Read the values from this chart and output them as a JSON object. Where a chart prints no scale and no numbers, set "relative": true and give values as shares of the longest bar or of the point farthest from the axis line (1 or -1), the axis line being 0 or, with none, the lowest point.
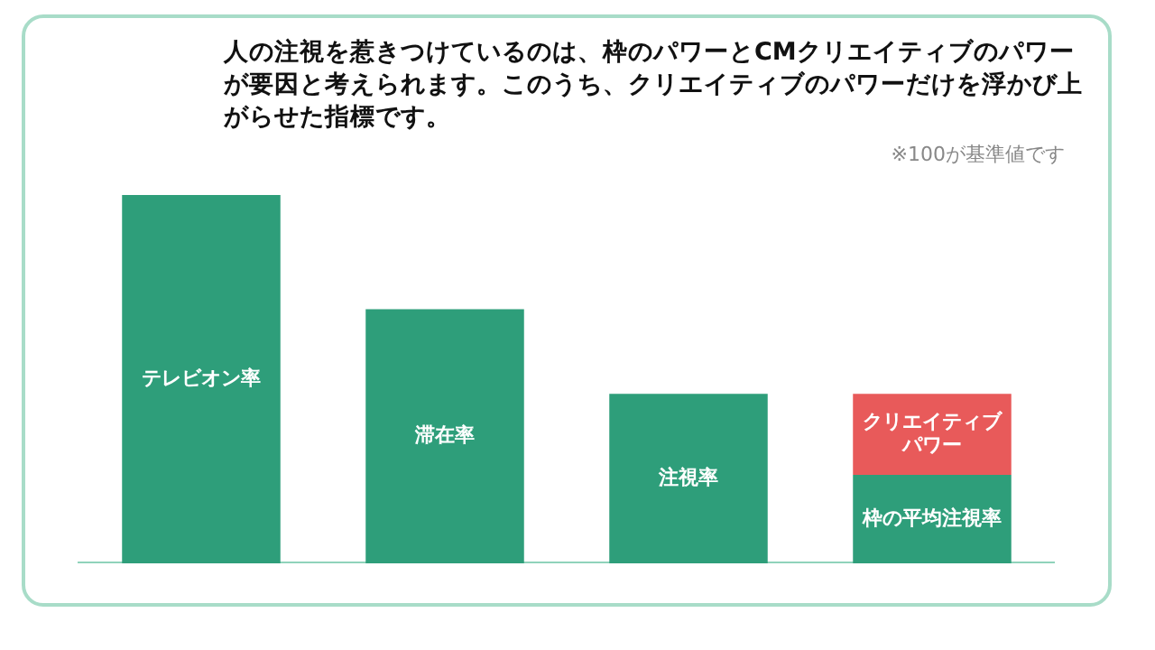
{
  "chart_data": {
    "type": "bar",
    "title": "人の注視を惹きつけているのは、枠のパワーとCMクリエイティブのパワーが要因と考えられます。このうち、クリエイティブのパワーだけを浮かび上がらせた指標です。",
    "annotations": [
      "※100が基準値です"
    ],
    "categories": [
      "テレビオン率",
      "滞在率",
      "注視率",
      "枠の平均注視率"
    ],
    "series": [
      {
        "color": "#2e9e7a",
        "values": [
          1,
          0.69,
          0.46,
          0.24
        ]
      },
      {
        "name": "クリエイティブパワー",
        "color": "#e85a5a",
        "values": [
          null,
          null,
          null,
          0.22
        ]
      }
    ],
    "stacked": true,
    "relative": true,
    "legend": false,
    "tick_labels": false
  }
}
